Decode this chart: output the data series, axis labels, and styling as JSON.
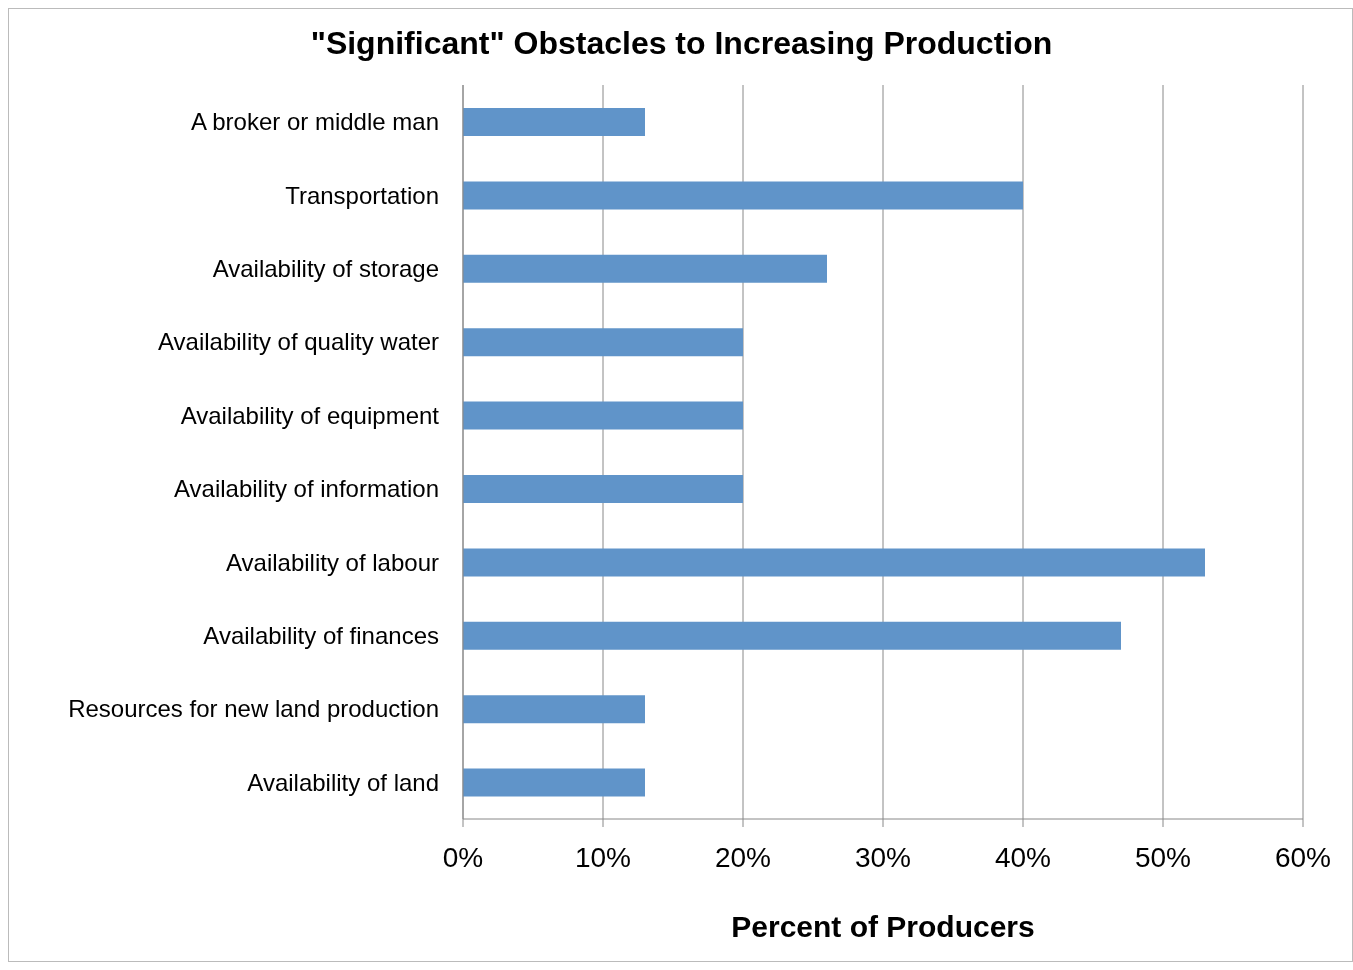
{
  "chart_data": {
    "type": "bar",
    "orientation": "horizontal",
    "title": "\"Significant\" Obstacles to Increasing Production",
    "xlabel": "Percent of Producers",
    "categories": [
      "A broker or middle man",
      "Transportation",
      "Availability of storage",
      "Availability of quality water",
      "Availability of equipment",
      "Availability of information",
      "Availability of labour",
      "Availability of finances",
      "Resources for new land production",
      "Availability of land"
    ],
    "values": [
      13,
      40,
      26,
      20,
      20,
      20,
      53,
      47,
      13,
      13
    ],
    "color": "#6094c9",
    "xlim": [
      0,
      60
    ],
    "xticks": [
      {
        "value": 0,
        "label": "0%"
      },
      {
        "value": 10,
        "label": "10%"
      },
      {
        "value": 20,
        "label": "20%"
      },
      {
        "value": 30,
        "label": "30%"
      },
      {
        "value": 40,
        "label": "40%"
      },
      {
        "value": 50,
        "label": "50%"
      },
      {
        "value": 60,
        "label": "60%"
      }
    ],
    "grid": "x"
  }
}
